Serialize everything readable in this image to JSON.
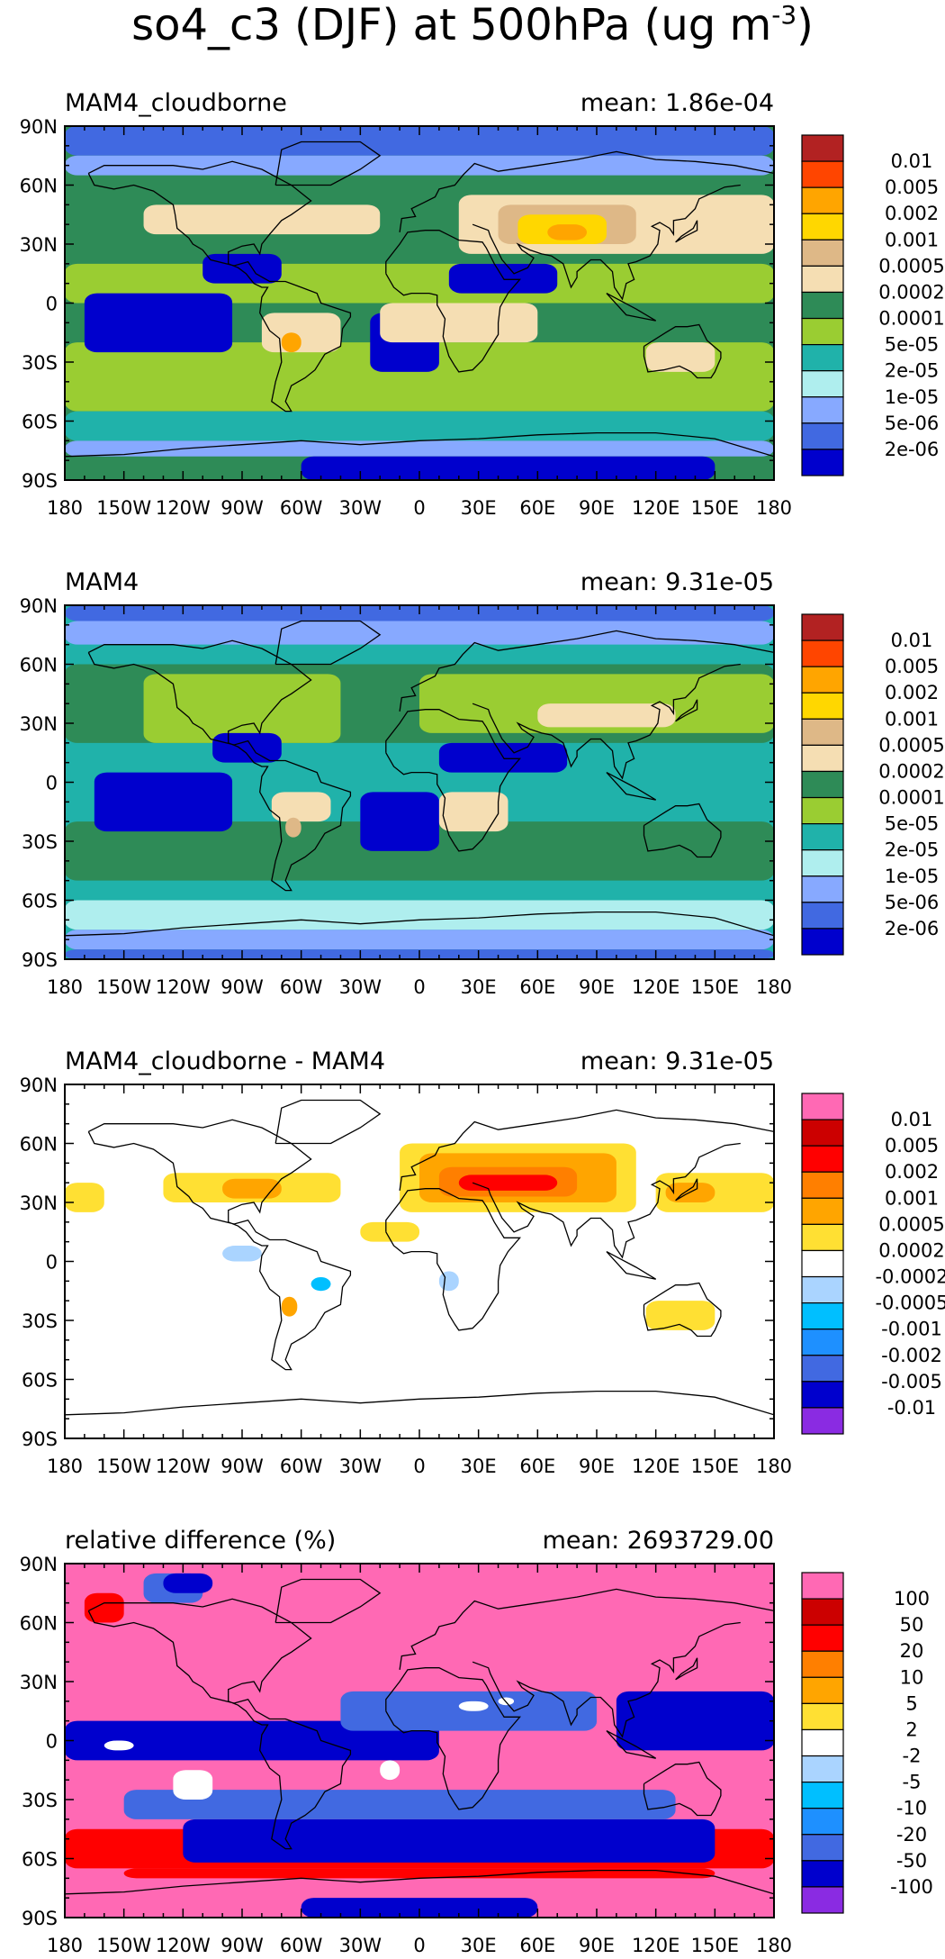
{
  "figure": {
    "title_main": "so4_c3 (DJF) at 500hPa (ug m",
    "title_exp": "-3",
    "title_close": ")"
  },
  "axes": {
    "lat_labels": [
      "90N",
      "60N",
      "30N",
      "0",
      "30S",
      "60S",
      "90S"
    ],
    "lon_labels": [
      "180",
      "150W",
      "120W",
      "90W",
      "60W",
      "30W",
      "0",
      "30E",
      "60E",
      "90E",
      "120E",
      "150E",
      "180"
    ]
  },
  "chart_data": [
    {
      "type": "heatmap",
      "title": "MAM4_cloudborne",
      "mean_text": "mean:  1.86e-04",
      "colorbar_labels": [
        "0.01",
        "0.005",
        "0.002",
        "0.001",
        "0.0005",
        "0.0002",
        "0.0001",
        "5e-05",
        "2e-05",
        "1e-05",
        "5e-06",
        "2e-06"
      ],
      "colorbar_colors": [
        "#b22222",
        "#ff4500",
        "#ffa500",
        "#ffd700",
        "#deb887",
        "#f5deb3",
        "#2e8b57",
        "#9acd32",
        "#20b2aa",
        "#afeeee",
        "#87a9ff",
        "#4169e1",
        "#0000cd"
      ],
      "background": "#2e8b57",
      "regions": [
        {
          "color": "#9acd32",
          "lon": [
            -180,
            180
          ],
          "lat": [
            -55,
            -20
          ]
        },
        {
          "color": "#20b2aa",
          "lon": [
            -180,
            180
          ],
          "lat": [
            -70,
            -55
          ]
        },
        {
          "color": "#87a9ff",
          "lon": [
            -180,
            180
          ],
          "lat": [
            -78,
            -70
          ]
        },
        {
          "color": "#0000cd",
          "lon": [
            -60,
            150
          ],
          "lat": [
            -90,
            -78
          ]
        },
        {
          "color": "#4169e1",
          "lon": [
            -180,
            180
          ],
          "lat": [
            75,
            90
          ]
        },
        {
          "color": "#87a9ff",
          "lon": [
            -180,
            180
          ],
          "lat": [
            65,
            75
          ]
        },
        {
          "color": "#9acd32",
          "lon": [
            -180,
            180
          ],
          "lat": [
            0,
            20
          ]
        },
        {
          "color": "#0000cd",
          "lon": [
            -170,
            -95
          ],
          "lat": [
            -25,
            5
          ]
        },
        {
          "color": "#0000cd",
          "lon": [
            -25,
            10
          ],
          "lat": [
            -35,
            -5
          ]
        },
        {
          "color": "#0000cd",
          "lon": [
            15,
            70
          ],
          "lat": [
            5,
            20
          ]
        },
        {
          "color": "#0000cd",
          "lon": [
            -110,
            -70
          ],
          "lat": [
            10,
            25
          ]
        },
        {
          "color": "#f5deb3",
          "lon": [
            -20,
            60
          ],
          "lat": [
            -20,
            0
          ]
        },
        {
          "color": "#f5deb3",
          "lon": [
            -80,
            -40
          ],
          "lat": [
            -25,
            -5
          ]
        },
        {
          "color": "#f5deb3",
          "lon": [
            -140,
            -20
          ],
          "lat": [
            35,
            50
          ]
        },
        {
          "color": "#f5deb3",
          "lon": [
            20,
            180
          ],
          "lat": [
            25,
            55
          ]
        },
        {
          "color": "#f5deb3",
          "lon": [
            115,
            150
          ],
          "lat": [
            -35,
            -20
          ]
        },
        {
          "color": "#deb887",
          "lon": [
            40,
            110
          ],
          "lat": [
            30,
            50
          ]
        },
        {
          "color": "#ffd700",
          "lon": [
            50,
            95
          ],
          "lat": [
            30,
            45
          ]
        },
        {
          "color": "#ffa500",
          "lon": [
            65,
            85
          ],
          "lat": [
            32,
            40
          ]
        },
        {
          "color": "#ffa500",
          "lon": [
            -70,
            -60
          ],
          "lat": [
            -25,
            -15
          ]
        }
      ]
    },
    {
      "type": "heatmap",
      "title": "MAM4",
      "mean_text": "mean:  9.31e-05",
      "colorbar_labels": [
        "0.01",
        "0.005",
        "0.002",
        "0.001",
        "0.0005",
        "0.0002",
        "0.0001",
        "5e-05",
        "2e-05",
        "1e-05",
        "5e-06",
        "2e-06"
      ],
      "colorbar_colors": [
        "#b22222",
        "#ff4500",
        "#ffa500",
        "#ffd700",
        "#deb887",
        "#f5deb3",
        "#2e8b57",
        "#9acd32",
        "#20b2aa",
        "#afeeee",
        "#87a9ff",
        "#4169e1",
        "#0000cd"
      ],
      "background": "#20b2aa",
      "regions": [
        {
          "color": "#2e8b57",
          "lon": [
            -180,
            180
          ],
          "lat": [
            -50,
            -20
          ]
        },
        {
          "color": "#2e8b57",
          "lon": [
            -180,
            180
          ],
          "lat": [
            20,
            60
          ]
        },
        {
          "color": "#9acd32",
          "lon": [
            -140,
            -40
          ],
          "lat": [
            20,
            55
          ]
        },
        {
          "color": "#9acd32",
          "lon": [
            0,
            180
          ],
          "lat": [
            25,
            55
          ]
        },
        {
          "color": "#afeeee",
          "lon": [
            -180,
            180
          ],
          "lat": [
            -75,
            -60
          ]
        },
        {
          "color": "#87a9ff",
          "lon": [
            -180,
            180
          ],
          "lat": [
            -85,
            -75
          ]
        },
        {
          "color": "#4169e1",
          "lon": [
            -180,
            180
          ],
          "lat": [
            -90,
            -85
          ]
        },
        {
          "color": "#87a9ff",
          "lon": [
            -180,
            180
          ],
          "lat": [
            70,
            82
          ]
        },
        {
          "color": "#4169e1",
          "lon": [
            -180,
            180
          ],
          "lat": [
            82,
            90
          ]
        },
        {
          "color": "#0000cd",
          "lon": [
            -165,
            -95
          ],
          "lat": [
            -25,
            5
          ]
        },
        {
          "color": "#0000cd",
          "lon": [
            -30,
            10
          ],
          "lat": [
            -35,
            -5
          ]
        },
        {
          "color": "#0000cd",
          "lon": [
            10,
            75
          ],
          "lat": [
            5,
            20
          ]
        },
        {
          "color": "#0000cd",
          "lon": [
            -105,
            -70
          ],
          "lat": [
            10,
            25
          ]
        },
        {
          "color": "#f5deb3",
          "lon": [
            10,
            45
          ],
          "lat": [
            -25,
            -5
          ]
        },
        {
          "color": "#f5deb3",
          "lon": [
            -75,
            -45
          ],
          "lat": [
            -20,
            -5
          ]
        },
        {
          "color": "#f5deb3",
          "lon": [
            60,
            130
          ],
          "lat": [
            28,
            40
          ]
        },
        {
          "color": "#deb887",
          "lon": [
            -68,
            -60
          ],
          "lat": [
            -28,
            -18
          ]
        }
      ]
    },
    {
      "type": "heatmap",
      "title": "MAM4_cloudborne - MAM4",
      "mean_text": "mean:  9.31e-05",
      "colorbar_labels": [
        "0.01",
        "0.005",
        "0.002",
        "0.001",
        "0.0005",
        "0.0002",
        "-0.0002",
        "-0.0005",
        "-0.001",
        "-0.002",
        "-0.005",
        "-0.01"
      ],
      "colorbar_colors": [
        "#ff69b4",
        "#cc0000",
        "#ff0000",
        "#ff7f00",
        "#ffa500",
        "#ffe033",
        "#ffffff",
        "#aad4ff",
        "#00bfff",
        "#1e90ff",
        "#4169e1",
        "#0000cd",
        "#8a2be2"
      ],
      "background": "#ffffff",
      "regions": [
        {
          "color": "#ffe033",
          "lon": [
            -180,
            -160
          ],
          "lat": [
            25,
            40
          ]
        },
        {
          "color": "#ffe033",
          "lon": [
            -130,
            -40
          ],
          "lat": [
            30,
            45
          ]
        },
        {
          "color": "#ffa500",
          "lon": [
            -100,
            -70
          ],
          "lat": [
            32,
            42
          ]
        },
        {
          "color": "#ffe033",
          "lon": [
            -10,
            110
          ],
          "lat": [
            25,
            60
          ]
        },
        {
          "color": "#ffa500",
          "lon": [
            0,
            100
          ],
          "lat": [
            30,
            55
          ]
        },
        {
          "color": "#ff7f00",
          "lon": [
            10,
            80
          ],
          "lat": [
            33,
            48
          ]
        },
        {
          "color": "#ff0000",
          "lon": [
            20,
            70
          ],
          "lat": [
            36,
            44
          ]
        },
        {
          "color": "#ffe033",
          "lon": [
            120,
            180
          ],
          "lat": [
            25,
            45
          ]
        },
        {
          "color": "#ffa500",
          "lon": [
            125,
            150
          ],
          "lat": [
            30,
            40
          ]
        },
        {
          "color": "#ffe033",
          "lon": [
            -30,
            0
          ],
          "lat": [
            10,
            20
          ]
        },
        {
          "color": "#ffe033",
          "lon": [
            115,
            150
          ],
          "lat": [
            -35,
            -20
          ]
        },
        {
          "color": "#ffa500",
          "lon": [
            -70,
            -62
          ],
          "lat": [
            -28,
            -18
          ]
        },
        {
          "color": "#aad4ff",
          "lon": [
            -100,
            -80
          ],
          "lat": [
            0,
            8
          ]
        },
        {
          "color": "#aad4ff",
          "lon": [
            10,
            20
          ],
          "lat": [
            -15,
            -5
          ]
        },
        {
          "color": "#00bfff",
          "lon": [
            -55,
            -45
          ],
          "lat": [
            -15,
            -8
          ]
        }
      ]
    },
    {
      "type": "heatmap",
      "title": "relative difference (%)",
      "mean_text": "mean:  2693729.00",
      "colorbar_labels": [
        "100",
        "50",
        "20",
        "10",
        "5",
        "2",
        "-2",
        "-5",
        "-10",
        "-20",
        "-50",
        "-100"
      ],
      "colorbar_colors": [
        "#ff69b4",
        "#cc0000",
        "#ff0000",
        "#ff7f00",
        "#ffa500",
        "#ffe033",
        "#ffffff",
        "#aad4ff",
        "#00bfff",
        "#1e90ff",
        "#4169e1",
        "#0000cd",
        "#8a2be2"
      ],
      "background": "#ff69b4",
      "regions": [
        {
          "color": "#ff0000",
          "lon": [
            -180,
            180
          ],
          "lat": [
            -65,
            -45
          ]
        },
        {
          "color": "#0000cd",
          "lon": [
            -120,
            150
          ],
          "lat": [
            -62,
            -40
          ]
        },
        {
          "color": "#4169e1",
          "lon": [
            -150,
            130
          ],
          "lat": [
            -40,
            -25
          ]
        },
        {
          "color": "#0000cd",
          "lon": [
            -180,
            10
          ],
          "lat": [
            -10,
            10
          ]
        },
        {
          "color": "#4169e1",
          "lon": [
            -40,
            90
          ],
          "lat": [
            5,
            25
          ]
        },
        {
          "color": "#0000cd",
          "lon": [
            100,
            180
          ],
          "lat": [
            -5,
            25
          ]
        },
        {
          "color": "#4169e1",
          "lon": [
            -140,
            -110
          ],
          "lat": [
            70,
            85
          ]
        },
        {
          "color": "#0000cd",
          "lon": [
            -130,
            -105
          ],
          "lat": [
            75,
            85
          ]
        },
        {
          "color": "#0000cd",
          "lon": [
            -60,
            60
          ],
          "lat": [
            -90,
            -80
          ]
        },
        {
          "color": "#ffffff",
          "lon": [
            -125,
            -105
          ],
          "lat": [
            -30,
            -15
          ]
        },
        {
          "color": "#ffffff",
          "lon": [
            -160,
            -145
          ],
          "lat": [
            -5,
            0
          ]
        },
        {
          "color": "#ffffff",
          "lon": [
            -20,
            -10
          ],
          "lat": [
            -20,
            -10
          ]
        },
        {
          "color": "#ffffff",
          "lon": [
            20,
            35
          ],
          "lat": [
            15,
            20
          ]
        },
        {
          "color": "#ffffff",
          "lon": [
            40,
            48
          ],
          "lat": [
            18,
            22
          ]
        },
        {
          "color": "#ff0000",
          "lon": [
            -170,
            -150
          ],
          "lat": [
            60,
            75
          ]
        },
        {
          "color": "#ff0000",
          "lon": [
            -150,
            150
          ],
          "lat": [
            -70,
            -65
          ]
        }
      ]
    }
  ]
}
